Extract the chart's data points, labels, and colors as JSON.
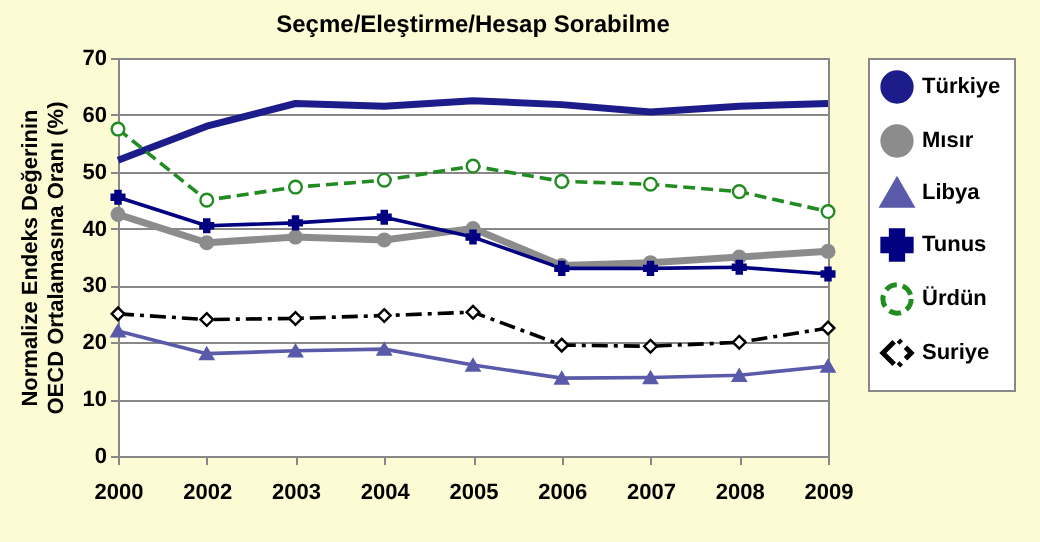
{
  "chart_data": {
    "type": "line",
    "title": "Seçme/Eleştirme/Hesap Sorabilme",
    "ylabel": "Normalize Endeks Değerinin\nOECD Ortalamasına Oranı (%)",
    "categories": [
      "2000",
      "2002",
      "2003",
      "2004",
      "2005",
      "2006",
      "2007",
      "2008",
      "2009"
    ],
    "ylim": [
      0,
      70
    ],
    "yticks": [
      0,
      10,
      20,
      30,
      40,
      50,
      60,
      70
    ],
    "grid": "y",
    "legend": "right",
    "series": [
      {
        "name": "Türkiye",
        "color": "#1c1c8a",
        "marker": "none",
        "line_style": "solid",
        "values": [
          52,
          58,
          62,
          61.5,
          62.5,
          61.8,
          60.5,
          61.5,
          62
        ]
      },
      {
        "name": "Mısır",
        "color": "#8c8c8c",
        "marker": "circle",
        "line_style": "solid",
        "values": [
          42.5,
          37.5,
          38.5,
          38,
          40,
          33.5,
          34,
          35,
          36
        ]
      },
      {
        "name": "Libya",
        "color": "#5a5aaa",
        "marker": "triangle",
        "line_style": "solid",
        "values": [
          22,
          18,
          18.5,
          18.8,
          16,
          13.7,
          13.8,
          14.2,
          15.8
        ]
      },
      {
        "name": "Tunus",
        "color": "#000080",
        "marker": "cross",
        "line_style": "solid",
        "values": [
          45.5,
          40.5,
          41,
          42,
          38.5,
          33,
          33,
          33.2,
          32
        ]
      },
      {
        "name": "Ürdün",
        "color": "#228b22",
        "marker": "circle",
        "line_style": "dashed",
        "values": [
          57.5,
          45,
          47.3,
          48.5,
          51,
          48.3,
          47.8,
          46.5,
          43
        ]
      },
      {
        "name": "Suriye",
        "color": "#000000",
        "marker": "diamond",
        "line_style": "dashdot",
        "values": [
          25,
          24,
          24.2,
          24.7,
          25.3,
          19.5,
          19.3,
          20,
          22.5
        ]
      }
    ]
  }
}
